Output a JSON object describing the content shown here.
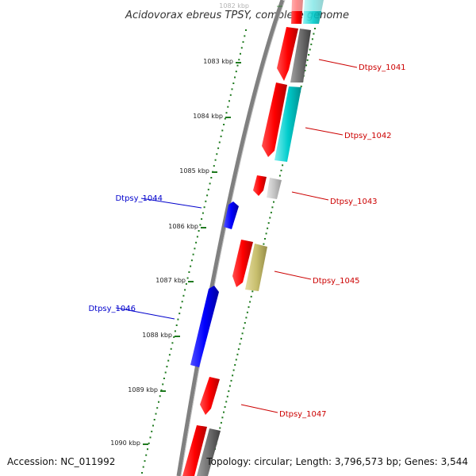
{
  "title": "Acidovorax ebreus TPSY, complete genome",
  "footer": {
    "accession": "Accession: NC_011992",
    "summary": "Topology: circular; Length: 3,796,573 bp; Genes: 3,544"
  },
  "ticks": [
    {
      "label": "1082 kbp",
      "faded": true
    },
    {
      "label": "1083 kbp"
    },
    {
      "label": "1084 kbp"
    },
    {
      "label": "1085 kbp"
    },
    {
      "label": "1086 kbp"
    },
    {
      "label": "1087 kbp"
    },
    {
      "label": "1088 kbp"
    },
    {
      "label": "1089 kbp"
    },
    {
      "label": "1090 kbp"
    }
  ],
  "gene_labels": [
    {
      "name": "Dtpsy_1041",
      "color": "#cc0000",
      "side": "right"
    },
    {
      "name": "Dtpsy_1042",
      "color": "#cc0000",
      "side": "right"
    },
    {
      "name": "Dtpsy_1043",
      "color": "#cc0000",
      "side": "right"
    },
    {
      "name": "Dtpsy_1044",
      "color": "#0000cc",
      "side": "left"
    },
    {
      "name": "Dtpsy_1045",
      "color": "#cc0000",
      "side": "right"
    },
    {
      "name": "Dtpsy_1046",
      "color": "#0000cc",
      "side": "left"
    },
    {
      "name": "Dtpsy_1047",
      "color": "#cc0000",
      "side": "right"
    }
  ],
  "colors": {
    "forward_cds": "#ff0000",
    "reverse_cds": "#0000ff",
    "backbone": "#808080",
    "tick_green": "#1f7a1f",
    "cyan_feature": "#00cccc",
    "khaki_feature": "#c8bf6e",
    "grey_feature": "#707070",
    "light_grey_feature": "#bbbbbb"
  }
}
